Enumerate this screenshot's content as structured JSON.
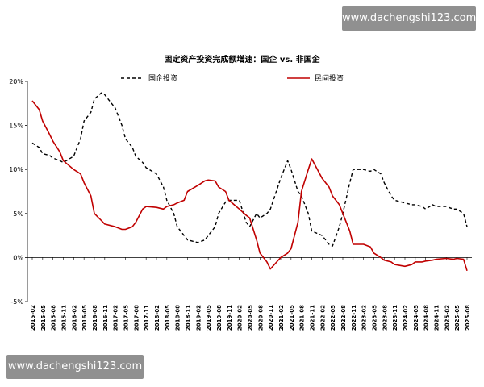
{
  "watermark": {
    "top": "www.dachengshi123.com",
    "bottom": "www.dachengshi123.com"
  },
  "chart_data": {
    "type": "line",
    "title": "固定资产投资完成额增速：国企 vs. 非国企",
    "xlabel": "",
    "ylabel": "",
    "ylim": [
      -5,
      20
    ],
    "y_ticks": [
      "-5%",
      "0%",
      "5%",
      "10%",
      "15%",
      "20%"
    ],
    "y_tick_values": [
      -5,
      0,
      5,
      10,
      15,
      20
    ],
    "grid": false,
    "legend": "top",
    "colors": {
      "soe": "#000000",
      "private": "#c00000"
    },
    "categories": [
      "2015-02",
      "2015-05",
      "2015-08",
      "2015-11",
      "2016-02",
      "2016-05",
      "2016-08",
      "2016-11",
      "2017-02",
      "2017-05",
      "2017-08",
      "2017-11",
      "2018-02",
      "2018-05",
      "2018-08",
      "2018-11",
      "2019-02",
      "2019-05",
      "2019-08",
      "2019-11",
      "2020-02",
      "2020-05",
      "2020-08",
      "2020-11",
      "2021-02",
      "2021-05",
      "2021-08",
      "2021-11",
      "2022-02",
      "2022-05",
      "2022-08",
      "2022-11",
      "2023-02",
      "2023-05",
      "2023-08",
      "2023-11",
      "2024-02",
      "2024-05",
      "2024-08",
      "2024-11",
      "2025-02",
      "2025-05",
      "2025-08"
    ],
    "x": [
      "2015-02",
      "2015-04",
      "2015-05",
      "2015-07",
      "2015-08",
      "2015-10",
      "2015-11",
      "2016-02",
      "2016-04",
      "2016-05",
      "2016-07",
      "2016-08",
      "2016-10",
      "2016-11",
      "2017-02",
      "2017-04",
      "2017-05",
      "2017-07",
      "2017-08",
      "2017-10",
      "2017-11",
      "2018-02",
      "2018-04",
      "2018-05",
      "2018-07",
      "2018-08",
      "2018-10",
      "2018-11",
      "2019-02",
      "2019-04",
      "2019-05",
      "2019-07",
      "2019-08",
      "2019-10",
      "2019-11",
      "2020-02",
      "2020-04",
      "2020-05",
      "2020-07",
      "2020-08",
      "2020-10",
      "2020-11",
      "2021-02",
      "2021-04",
      "2021-05",
      "2021-07",
      "2021-08",
      "2021-10",
      "2021-11",
      "2022-02",
      "2022-04",
      "2022-05",
      "2022-07",
      "2022-08",
      "2022-10",
      "2022-11",
      "2023-02",
      "2023-04",
      "2023-05",
      "2023-07",
      "2023-08",
      "2023-10",
      "2023-11",
      "2024-02",
      "2024-04",
      "2024-05",
      "2024-07",
      "2024-08",
      "2024-10",
      "2024-11",
      "2025-02",
      "2025-04",
      "2025-05",
      "2025-07",
      "2025-08"
    ],
    "series": [
      {
        "name": "国企投资",
        "key": "soe",
        "dash": true,
        "values": [
          13.0,
          12.5,
          11.8,
          11.6,
          11.3,
          11.0,
          10.8,
          11.5,
          13.5,
          15.5,
          16.5,
          18.0,
          18.7,
          18.5,
          17.0,
          15.0,
          13.5,
          12.5,
          11.5,
          10.8,
          10.2,
          9.5,
          8.0,
          6.5,
          5.0,
          3.5,
          2.5,
          2.0,
          1.7,
          2.0,
          2.5,
          3.5,
          5.0,
          6.3,
          6.5,
          6.5,
          4.0,
          3.5,
          5.0,
          4.5,
          5.0,
          5.5,
          9.0,
          11.0,
          10.0,
          7.5,
          7.0,
          5.0,
          3.0,
          2.5,
          1.5,
          1.3,
          3.5,
          5.0,
          8.5,
          10.0,
          10.0,
          9.8,
          10.0,
          9.5,
          8.5,
          7.0,
          6.5,
          6.2,
          6.0,
          6.0,
          5.8,
          5.5,
          6.0,
          5.8,
          5.8,
          5.5,
          5.5,
          5.0,
          3.5
        ]
      },
      {
        "name": "民间投资",
        "key": "private",
        "dash": false,
        "values": [
          17.8,
          16.8,
          15.5,
          14.0,
          13.2,
          12.0,
          11.0,
          10.0,
          9.5,
          8.5,
          7.0,
          5.0,
          4.2,
          3.8,
          3.5,
          3.2,
          3.2,
          3.5,
          4.0,
          5.5,
          5.8,
          5.7,
          5.5,
          5.8,
          6.0,
          6.2,
          6.5,
          7.5,
          8.2,
          8.7,
          8.8,
          8.7,
          8.0,
          7.5,
          6.5,
          5.5,
          4.8,
          4.5,
          2.0,
          0.5,
          -0.5,
          -1.3,
          0.0,
          0.5,
          1.0,
          4.0,
          7.5,
          10.0,
          11.2,
          9.0,
          8.0,
          7.0,
          6.0,
          5.0,
          3.0,
          1.5,
          1.5,
          1.2,
          0.5,
          0.0,
          -0.3,
          -0.5,
          -0.8,
          -1.0,
          -0.8,
          -0.5,
          -0.5,
          -0.4,
          -0.3,
          -0.2,
          -0.1,
          -0.2,
          -0.1,
          -0.2,
          -1.5
        ]
      }
    ]
  }
}
